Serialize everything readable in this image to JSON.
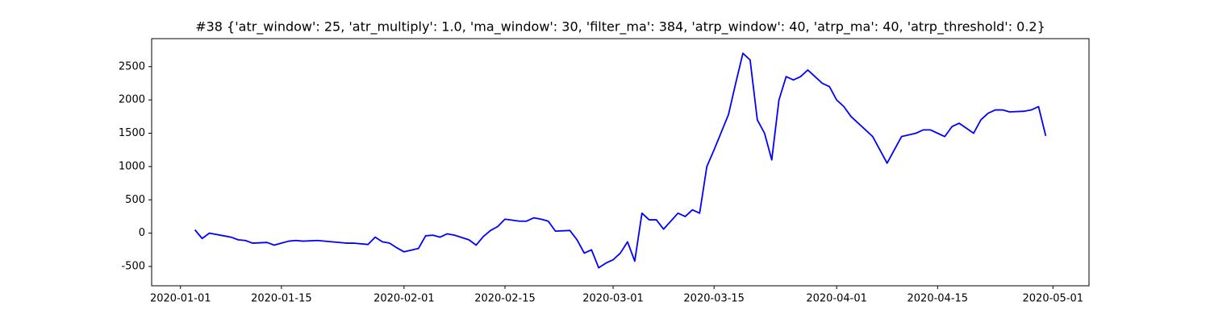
{
  "chart_data": {
    "type": "line",
    "title": "#38 {'atr_window': 25, 'atr_multiply': 1.0, 'ma_window': 30, 'filter_ma': 384, 'atrp_window': 40, 'atrp_ma': 40, 'atrp_threshold': 0.2}",
    "x": [
      "2020-01-03",
      "2020-01-04",
      "2020-01-05",
      "2020-01-07",
      "2020-01-08",
      "2020-01-09",
      "2020-01-10",
      "2020-01-11",
      "2020-01-13",
      "2020-01-14",
      "2020-01-15",
      "2020-01-16",
      "2020-01-17",
      "2020-01-18",
      "2020-01-20",
      "2020-01-22",
      "2020-01-24",
      "2020-01-25",
      "2020-01-27",
      "2020-01-28",
      "2020-01-29",
      "2020-01-30",
      "2020-01-31",
      "2020-02-01",
      "2020-02-03",
      "2020-02-04",
      "2020-02-05",
      "2020-02-06",
      "2020-02-07",
      "2020-02-08",
      "2020-02-10",
      "2020-02-11",
      "2020-02-12",
      "2020-02-13",
      "2020-02-14",
      "2020-02-15",
      "2020-02-17",
      "2020-02-18",
      "2020-02-19",
      "2020-02-20",
      "2020-02-21",
      "2020-02-22",
      "2020-02-24",
      "2020-02-25",
      "2020-02-26",
      "2020-02-27",
      "2020-02-28",
      "2020-02-29",
      "2020-03-01",
      "2020-03-02",
      "2020-03-03",
      "2020-03-04",
      "2020-03-05",
      "2020-03-06",
      "2020-03-07",
      "2020-03-08",
      "2020-03-10",
      "2020-03-11",
      "2020-03-12",
      "2020-03-13",
      "2020-03-14",
      "2020-03-15",
      "2020-03-17",
      "2020-03-18",
      "2020-03-19",
      "2020-03-20",
      "2020-03-21",
      "2020-03-22",
      "2020-03-23",
      "2020-03-24",
      "2020-03-25",
      "2020-03-26",
      "2020-03-27",
      "2020-03-28",
      "2020-03-29",
      "2020-03-30",
      "2020-03-31",
      "2020-04-01",
      "2020-04-02",
      "2020-04-03",
      "2020-04-04",
      "2020-04-06",
      "2020-04-07",
      "2020-04-08",
      "2020-04-09",
      "2020-04-10",
      "2020-04-12",
      "2020-04-13",
      "2020-04-14",
      "2020-04-15",
      "2020-04-16",
      "2020-04-17",
      "2020-04-18",
      "2020-04-20",
      "2020-04-21",
      "2020-04-22",
      "2020-04-23",
      "2020-04-24",
      "2020-04-25",
      "2020-04-27",
      "2020-04-28",
      "2020-04-29",
      "2020-04-30"
    ],
    "series": [
      {
        "color": "#0000ff",
        "values": [
          50,
          -80,
          0,
          -40,
          -60,
          -100,
          -110,
          -150,
          -140,
          -180,
          -150,
          -120,
          -110,
          -120,
          -110,
          -130,
          -150,
          -150,
          -170,
          -60,
          -130,
          -150,
          -220,
          -280,
          -230,
          -40,
          -30,
          -60,
          -10,
          -30,
          -100,
          -180,
          -50,
          40,
          100,
          210,
          180,
          180,
          230,
          210,
          180,
          30,
          40,
          -100,
          -300,
          -250,
          -520,
          -450,
          -400,
          -300,
          -130,
          -420,
          300,
          200,
          200,
          60,
          300,
          250,
          350,
          300,
          1000,
          1250,
          1780,
          2250,
          2700,
          2600,
          1700,
          1500,
          1100,
          2000,
          2350,
          2300,
          2350,
          2450,
          2350,
          2250,
          2200,
          2000,
          1900,
          1750,
          1650,
          1450,
          1250,
          1050,
          1250,
          1450,
          1500,
          1550,
          1550,
          1500,
          1450,
          1600,
          1650,
          1500,
          1700,
          1800,
          1850,
          1850,
          1820,
          1830,
          1850,
          1900,
          1460
        ]
      }
    ],
    "xlim": [
      "2019-12-28",
      "2020-05-06"
    ],
    "xticks": [
      "2020-01-01",
      "2020-01-15",
      "2020-02-01",
      "2020-02-15",
      "2020-03-01",
      "2020-03-15",
      "2020-04-01",
      "2020-04-15",
      "2020-05-01"
    ],
    "ylim": [
      -790,
      2920
    ],
    "yticks": [
      -500,
      0,
      500,
      1000,
      1500,
      2000,
      2500
    ],
    "grid": false
  }
}
